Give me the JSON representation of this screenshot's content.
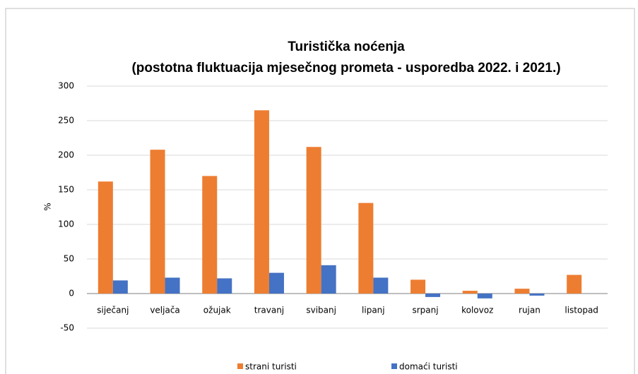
{
  "chart_data": {
    "type": "bar",
    "title": "Turistička noćenja",
    "subtitle": "(postotna fluktuacija  mjesečnog prometa - usporedba 2022. i 2021.)",
    "y_label": "%",
    "categories": [
      "siječanj",
      "veljača",
      "ožujak",
      "travanj",
      "svibanj",
      "lipanj",
      "srpanj",
      "kolovoz",
      "rujan",
      "listopad"
    ],
    "series": [
      {
        "name": "strani turisti",
        "color": "#ed7d31",
        "values": [
          162,
          208,
          170,
          265,
          212,
          131,
          20,
          4,
          7,
          27
        ]
      },
      {
        "name": "domaći turisti",
        "color": "#4472c4",
        "values": [
          19,
          23,
          22,
          30,
          41,
          23,
          -5,
          -7,
          -3,
          null
        ]
      }
    ],
    "ylim": [
      -50,
      300
    ],
    "yticks": [
      -50,
      0,
      50,
      100,
      150,
      200,
      250,
      300
    ],
    "grid": true,
    "legend": "bottom"
  }
}
